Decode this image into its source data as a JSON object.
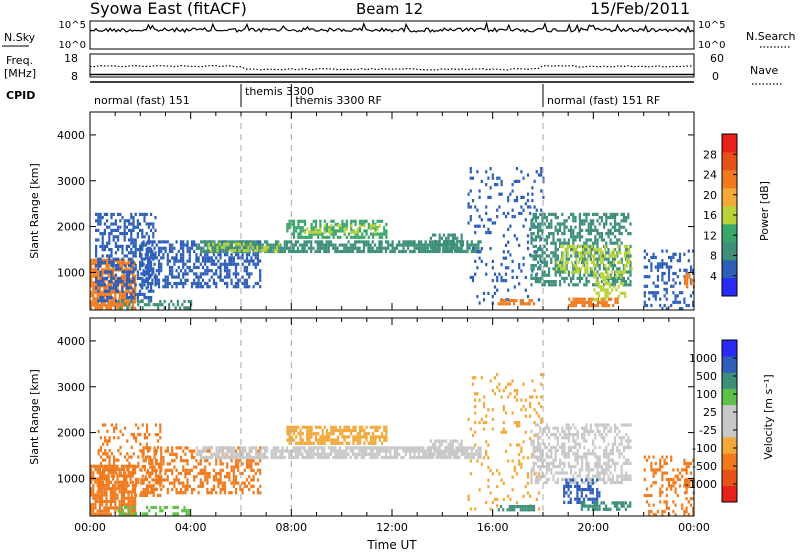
{
  "header": {
    "station": "Syowa East (fitACF)",
    "beam": "Beam 12",
    "date": "15/Feb/2011"
  },
  "strip": {
    "nsky_label": "N.Sky",
    "nsky_ticks": [
      "10^5",
      "10^0"
    ],
    "nsearch_label": "N.Search",
    "freq_label_1": "Freq.",
    "freq_label_2": "[MHz]",
    "freq_ticks": [
      "18",
      "8"
    ],
    "nave_label": "Nave",
    "nave_ticks": [
      "60",
      "0"
    ],
    "cpid_label": "CPID",
    "modes": [
      {
        "name": "normal (fast) 151",
        "start_h": 0.0
      },
      {
        "name": "themis 3300",
        "start_h": 6.0
      },
      {
        "name": "themis 3300 RF",
        "start_h": 8.0
      },
      {
        "name": "normal (fast) 151 RF",
        "start_h": 18.0
      }
    ]
  },
  "colors": {
    "power_scale": [
      "#2a2af5",
      "#2d5fb8",
      "#3e8f7a",
      "#3aa66a",
      "#b8d23a",
      "#f2a93a",
      "#f07a1e",
      "#e8501a",
      "#e8201a"
    ],
    "velocity_scale": [
      "#e8201a",
      "#e8501a",
      "#f07a1e",
      "#f2a93a",
      "#c8c8c8",
      "#c8c8c8",
      "#5cc04a",
      "#3e8f7a",
      "#2d5fb8",
      "#2a2af5"
    ]
  },
  "chart_data": [
    {
      "type": "heatmap",
      "panel": "power",
      "xlabel": "",
      "ylabel": "Slant Range [km]",
      "x_range_hours": [
        0,
        24
      ],
      "xticks": [
        "00:00",
        "04:00",
        "08:00",
        "12:00",
        "16:00",
        "20:00",
        "00:00"
      ],
      "ylim": [
        180,
        4500
      ],
      "yticks": [
        "1000",
        "2000",
        "3000",
        "4000"
      ],
      "ytick_values": [
        1000,
        2000,
        3000,
        4000
      ],
      "colorbar": {
        "label": "Power [dB]",
        "ticks": [
          "4",
          "8",
          "12",
          "16",
          "20",
          "24",
          "28"
        ],
        "range": [
          0,
          30
        ]
      },
      "echo_regions": [
        {
          "t0": 0.0,
          "t1": 1.8,
          "r0": 250,
          "r1": 1300,
          "value": 22,
          "density": 0.8
        },
        {
          "t0": 0.2,
          "t1": 2.6,
          "r0": 400,
          "r1": 2300,
          "value": 6,
          "density": 0.45
        },
        {
          "t0": 1.0,
          "t1": 4.0,
          "r0": 200,
          "r1": 400,
          "value": 9,
          "density": 0.4
        },
        {
          "t0": 2.0,
          "t1": 6.8,
          "r0": 700,
          "r1": 1700,
          "value": 5,
          "density": 0.55
        },
        {
          "t0": 4.2,
          "t1": 15.5,
          "r0": 1450,
          "r1": 1700,
          "value": 7,
          "density": 0.75
        },
        {
          "t0": 4.5,
          "t1": 7.5,
          "r0": 1500,
          "r1": 1650,
          "value": 16,
          "density": 0.35
        },
        {
          "t0": 7.8,
          "t1": 11.8,
          "r0": 1800,
          "r1": 2150,
          "value": 10,
          "density": 0.6
        },
        {
          "t0": 8.5,
          "t1": 11.5,
          "r0": 1850,
          "r1": 2050,
          "value": 16,
          "density": 0.3
        },
        {
          "t0": 13.5,
          "t1": 14.8,
          "r0": 1500,
          "r1": 1850,
          "value": 9,
          "density": 0.6
        },
        {
          "t0": 15.0,
          "t1": 18.0,
          "r0": 300,
          "r1": 3300,
          "value": 4,
          "density": 0.12
        },
        {
          "t0": 16.2,
          "t1": 17.6,
          "r0": 300,
          "r1": 420,
          "value": 20,
          "density": 0.7
        },
        {
          "t0": 17.5,
          "t1": 21.5,
          "r0": 700,
          "r1": 2300,
          "value": 7,
          "density": 0.5
        },
        {
          "t0": 18.5,
          "t1": 21.5,
          "r0": 1000,
          "r1": 1600,
          "value": 14,
          "density": 0.35
        },
        {
          "t0": 19.0,
          "t1": 21.0,
          "r0": 300,
          "r1": 450,
          "value": 22,
          "density": 0.6
        },
        {
          "t0": 20.0,
          "t1": 21.3,
          "r0": 400,
          "r1": 1000,
          "value": 15,
          "density": 0.4
        },
        {
          "t0": 22.0,
          "t1": 24.0,
          "r0": 200,
          "r1": 1500,
          "value": 4,
          "density": 0.3
        },
        {
          "t0": 23.6,
          "t1": 24.0,
          "r0": 700,
          "r1": 1000,
          "value": 22,
          "density": 0.6
        }
      ]
    },
    {
      "type": "heatmap",
      "panel": "velocity",
      "xlabel": "Time UT",
      "ylabel": "Slant Range [km]",
      "x_range_hours": [
        0,
        24
      ],
      "xticks": [
        "00:00",
        "04:00",
        "08:00",
        "12:00",
        "16:00",
        "20:00",
        "00:00"
      ],
      "ylim": [
        180,
        4500
      ],
      "yticks": [
        "1000",
        "2000",
        "3000",
        "4000"
      ],
      "ytick_values": [
        1000,
        2000,
        3000,
        4000
      ],
      "colorbar": {
        "label": "Velocity [m s⁻¹]",
        "ticks": [
          "1000",
          "500",
          "100",
          "25",
          "-25",
          "-100",
          "-500",
          "-1000"
        ]
      },
      "echo_regions": [
        {
          "t0": 0.0,
          "t1": 1.8,
          "r0": 250,
          "r1": 1300,
          "value": -300,
          "density": 0.8
        },
        {
          "t0": 0.3,
          "t1": 2.8,
          "r0": 600,
          "r1": 2200,
          "value": -120,
          "density": 0.3
        },
        {
          "t0": 1.0,
          "t1": 4.0,
          "r0": 200,
          "r1": 400,
          "value": 60,
          "density": 0.3
        },
        {
          "t0": 2.0,
          "t1": 6.8,
          "r0": 700,
          "r1": 1700,
          "value": -150,
          "density": 0.45
        },
        {
          "t0": 4.2,
          "t1": 15.5,
          "r0": 1450,
          "r1": 1700,
          "value": 0,
          "density": 0.8
        },
        {
          "t0": 7.8,
          "t1": 11.8,
          "r0": 1800,
          "r1": 2150,
          "value": -40,
          "density": 0.65
        },
        {
          "t0": 13.5,
          "t1": 14.8,
          "r0": 1500,
          "r1": 1850,
          "value": 0,
          "density": 0.6
        },
        {
          "t0": 15.0,
          "t1": 18.0,
          "r0": 300,
          "r1": 3300,
          "value": -80,
          "density": 0.12
        },
        {
          "t0": 16.2,
          "t1": 17.6,
          "r0": 300,
          "r1": 420,
          "value": 150,
          "density": 0.7
        },
        {
          "t0": 17.5,
          "t1": 21.5,
          "r0": 900,
          "r1": 2200,
          "value": 0,
          "density": 0.5
        },
        {
          "t0": 18.8,
          "t1": 20.2,
          "r0": 500,
          "r1": 1000,
          "value": 800,
          "density": 0.55
        },
        {
          "t0": 19.5,
          "t1": 21.5,
          "r0": 300,
          "r1": 500,
          "value": 200,
          "density": 0.6
        },
        {
          "t0": 22.0,
          "t1": 24.0,
          "r0": 200,
          "r1": 1500,
          "value": -150,
          "density": 0.3
        },
        {
          "t0": 23.6,
          "t1": 24.0,
          "r0": 700,
          "r1": 1000,
          "value": -300,
          "density": 0.6
        }
      ]
    }
  ]
}
